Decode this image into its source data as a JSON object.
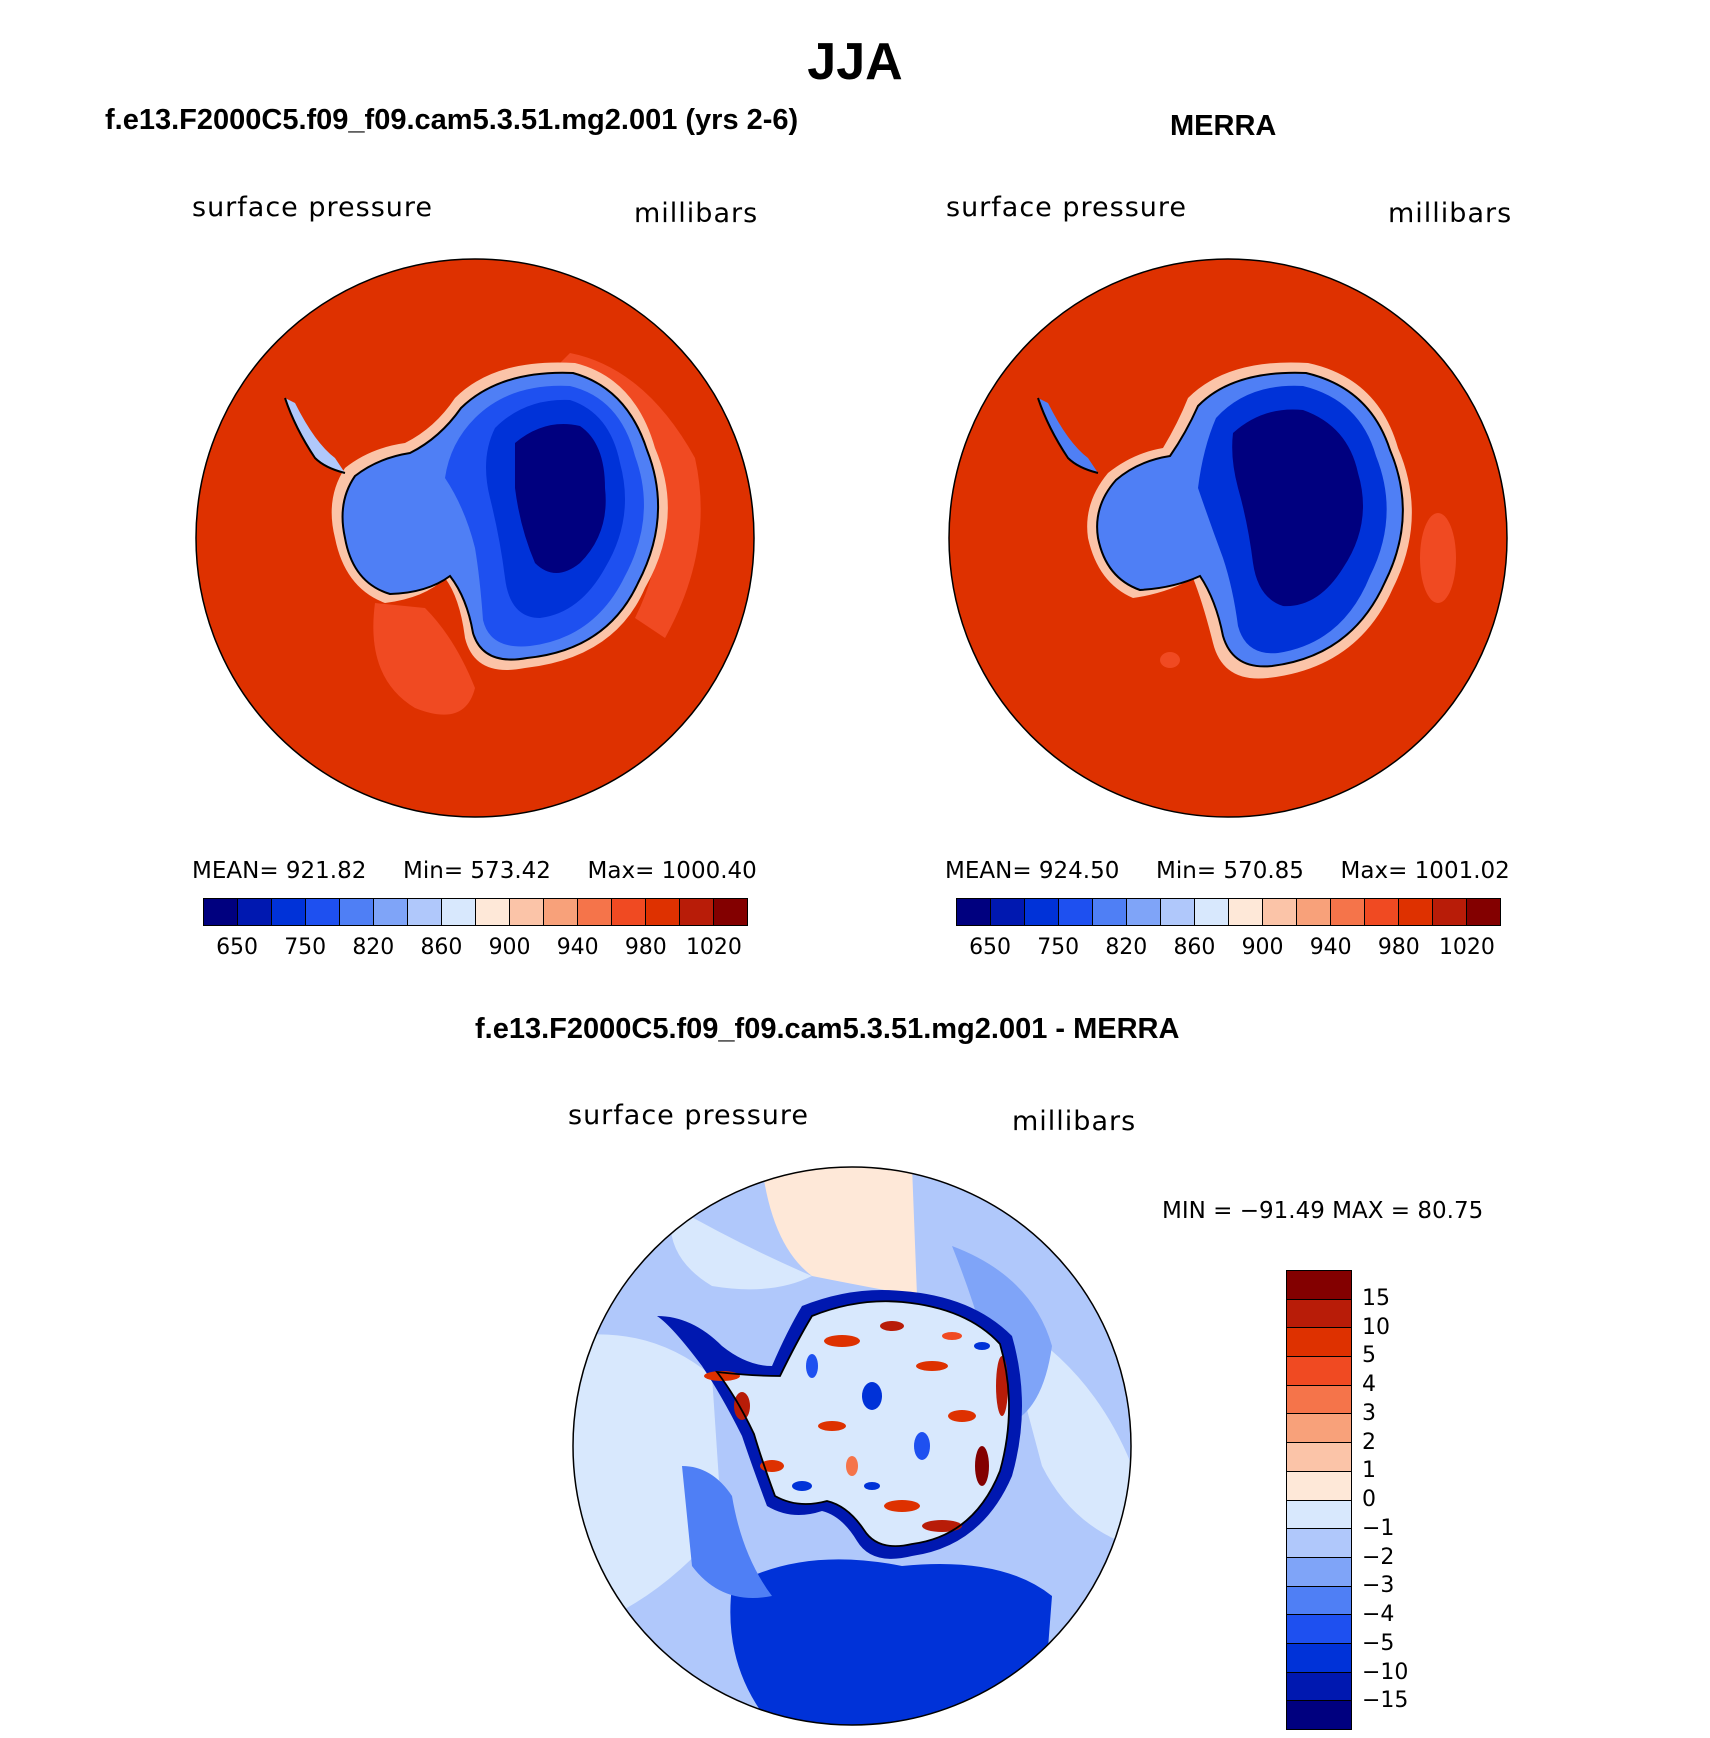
{
  "title": "JJA",
  "chart_data": [
    {
      "type": "heatmap",
      "projection": "south polar stereographic",
      "title": "f.e13.F2000C5.f09_f09.cam5.3.51.mg2.001 (yrs 2-6)",
      "variable": "surface pressure",
      "units": "millibars",
      "mean_label": "MEAN=",
      "mean": "921.82",
      "min_label": "Min=",
      "min": "573.42",
      "max_label": "Max=",
      "max": "1000.40",
      "colorbar_ticks": [
        "650",
        "750",
        "820",
        "860",
        "900",
        "940",
        "980",
        "1020"
      ]
    },
    {
      "type": "heatmap",
      "projection": "south polar stereographic",
      "title": "MERRA",
      "variable": "surface pressure",
      "units": "millibars",
      "mean_label": "MEAN=",
      "mean": "924.50",
      "min_label": "Min=",
      "min": "570.85",
      "max_label": "Max=",
      "max": "1001.02",
      "colorbar_ticks": [
        "650",
        "750",
        "820",
        "860",
        "900",
        "940",
        "980",
        "1020"
      ]
    },
    {
      "type": "heatmap",
      "projection": "south polar stereographic",
      "title": "f.e13.F2000C5.f09_f09.cam5.3.51.mg2.001 - MERRA",
      "variable": "surface pressure",
      "units": "millibars",
      "minmax_text": "MIN = −91.49 MAX =   80.75",
      "colorbar_ticks": [
        "15",
        "10",
        "5",
        "4",
        "3",
        "2",
        "1",
        "0",
        "−1",
        "−2",
        "−3",
        "−4",
        "−5",
        "−10",
        "−15"
      ]
    }
  ],
  "colors": {
    "abs_scale": [
      "#00007f",
      "#0018b0",
      "#0032d8",
      "#1e50f0",
      "#4f7ff5",
      "#7fa4f8",
      "#b0c8fb",
      "#d8e8fd",
      "#fee8d8",
      "#fbc4a8",
      "#f8a17a",
      "#f5744a",
      "#f04a22",
      "#de3100",
      "#b81c08",
      "#830000"
    ],
    "diff_scale": [
      "#830000",
      "#b81c08",
      "#de3100",
      "#f04a22",
      "#f5744a",
      "#f8a17a",
      "#fbc4a8",
      "#fee8d8",
      "#d8e8fd",
      "#b0c8fb",
      "#7fa4f8",
      "#4f7ff5",
      "#1e50f0",
      "#0032d8",
      "#0018b0",
      "#00007f"
    ]
  }
}
